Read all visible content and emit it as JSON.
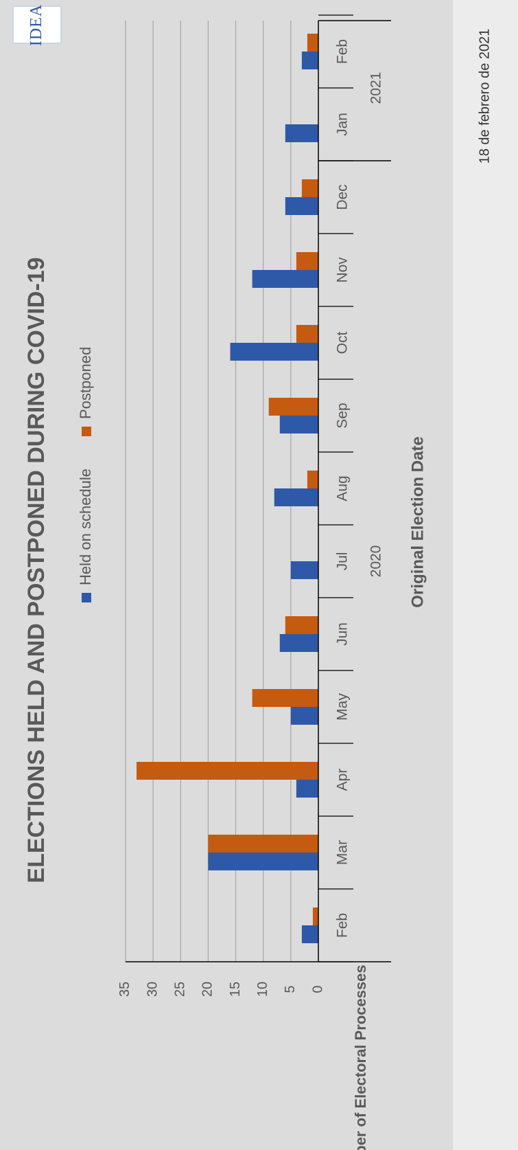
{
  "logo": {
    "text": "IDEA",
    "icon": "idea-logo-icon"
  },
  "caption": "18 de febrero de 2021",
  "chart_data": {
    "type": "bar",
    "orientation": "vertical (page rotated 90°)",
    "title": "ELECTIONS HELD AND POSTPONED DURING COVID-19",
    "xlabel": "Original Election Date",
    "ylabel": "Number of Electoral Processes",
    "ylim": [
      0,
      35
    ],
    "yticks": [
      0,
      5,
      10,
      15,
      20,
      25,
      30,
      35
    ],
    "grid": true,
    "legend_position": "top",
    "categories": [
      "Feb",
      "Mar",
      "Apr",
      "May",
      "Jun",
      "Jul",
      "Aug",
      "Sep",
      "Oct",
      "Nov",
      "Dec",
      "Jan",
      "Feb"
    ],
    "year_groups": [
      {
        "label": "2020",
        "start": 0,
        "end": 10
      },
      {
        "label": "2021",
        "start": 11,
        "end": 12
      }
    ],
    "series": [
      {
        "name": "Held on schedule",
        "color": "#2e59a8",
        "values": [
          3,
          20,
          4,
          5,
          7,
          5,
          8,
          7,
          16,
          12,
          6,
          6,
          3
        ]
      },
      {
        "name": "Postponed",
        "color": "#c55a11",
        "values": [
          1,
          20,
          33,
          12,
          6,
          0,
          2,
          9,
          4,
          4,
          3,
          0,
          2
        ]
      }
    ]
  }
}
